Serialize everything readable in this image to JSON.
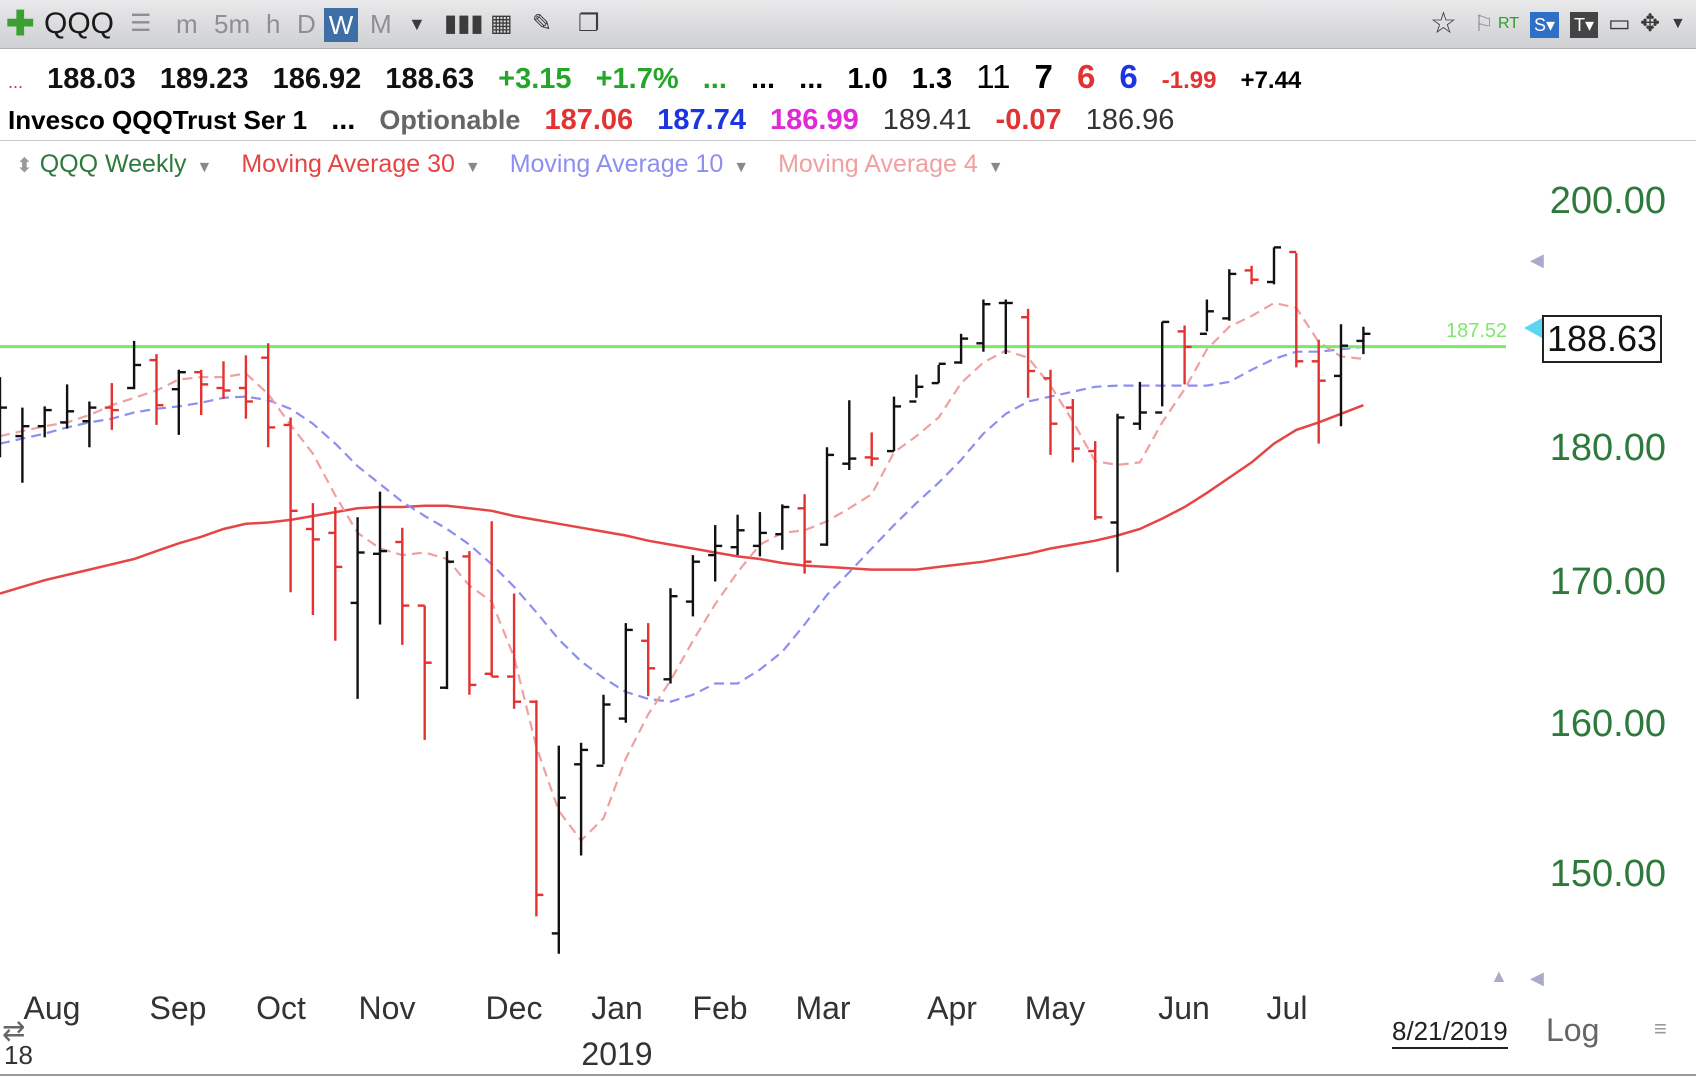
{
  "toolbar": {
    "add_icon": "plus-icon",
    "symbol": "QQQ",
    "timeframes": [
      "m",
      "5m",
      "h",
      "D",
      "W",
      "M"
    ],
    "active_timeframe": "W"
  },
  "quote_row1": {
    "dots": "...",
    "open": "188.03",
    "high": "189.23",
    "low": "186.92",
    "close": "188.63",
    "change": "+3.15",
    "change_pct": "+1.7%",
    "d1": "...",
    "d2": "...",
    "d3": "...",
    "v1": "1.0",
    "v2": "1.3",
    "n1": "11",
    "n2": "7",
    "n3": "6",
    "n4": "6",
    "n5": "-1.99",
    "n6": "+7.44"
  },
  "quote_row2": {
    "name": "Invesco QQQTrust Ser 1",
    "dots": "...",
    "optionable": "Optionable",
    "p1": "187.06",
    "p2": "187.74",
    "p3": "186.99",
    "p4": "189.41",
    "p5": "-0.07",
    "p6": "186.96"
  },
  "legend": {
    "series": "QQQ Weekly",
    "ma30": "Moving Average 30",
    "ma10": "Moving Average 10",
    "ma4": "Moving Average 4"
  },
  "colors": {
    "up_bar": "#111111",
    "down_bar": "#e23232",
    "ma30": "#e64545",
    "ma10": "#8d8ff0",
    "ma4": "#f0a0a0",
    "line": "#7ee86a",
    "axis_text": "#2e7a3c"
  },
  "axis": {
    "y_ticks": [
      "200.00",
      "180.00",
      "170.00",
      "160.00",
      "150.00"
    ],
    "x_ticks": [
      "Aug",
      "Sep",
      "Oct",
      "Nov",
      "Dec",
      "Jan",
      "Feb",
      "Mar",
      "Apr",
      "May",
      "Jun",
      "Jul"
    ],
    "year_label": "2019",
    "prev_year_label": "18",
    "last_price": "188.63",
    "line_label": "187.52",
    "date": "8/21/2019",
    "log_label": "Log"
  },
  "chart_data": {
    "type": "bar",
    "ohlc_bars": [
      {
        "o": 181.0,
        "h": 185.0,
        "l": 178.5,
        "c": 182.5
      },
      {
        "o": 180.2,
        "h": 182.5,
        "l": 176.5,
        "c": 181.0
      },
      {
        "o": 181.0,
        "h": 182.6,
        "l": 180.1,
        "c": 182.3
      },
      {
        "o": 181.3,
        "h": 184.4,
        "l": 180.8,
        "c": 182.2
      },
      {
        "o": 181.4,
        "h": 183.0,
        "l": 179.3,
        "c": 182.5
      },
      {
        "o": 182.5,
        "h": 184.5,
        "l": 180.7,
        "c": 182.3
      },
      {
        "o": 184.1,
        "h": 188.0,
        "l": 184.0,
        "c": 186.0
      },
      {
        "o": 186.4,
        "h": 186.9,
        "l": 181.1,
        "c": 182.7
      },
      {
        "o": 184.0,
        "h": 185.6,
        "l": 180.3,
        "c": 185.4
      },
      {
        "o": 185.4,
        "h": 185.6,
        "l": 181.9,
        "c": 184.4
      },
      {
        "o": 184.1,
        "h": 186.3,
        "l": 183.2,
        "c": 183.9
      },
      {
        "o": 184.1,
        "h": 186.8,
        "l": 181.6,
        "c": 183.0
      },
      {
        "o": 186.6,
        "h": 187.8,
        "l": 179.3,
        "c": 180.9
      },
      {
        "o": 181.1,
        "h": 181.7,
        "l": 168.1,
        "c": 174.3
      },
      {
        "o": 172.9,
        "h": 174.9,
        "l": 166.4,
        "c": 172.1
      },
      {
        "o": 172.6,
        "h": 174.6,
        "l": 164.5,
        "c": 170.0
      },
      {
        "o": 167.3,
        "h": 173.8,
        "l": 160.3,
        "c": 171.1
      },
      {
        "o": 171.0,
        "h": 175.8,
        "l": 165.7,
        "c": 171.2
      },
      {
        "o": 171.9,
        "h": 173.0,
        "l": 164.2,
        "c": 167.1
      },
      {
        "o": 167.1,
        "h": 167.1,
        "l": 157.4,
        "c": 162.9
      },
      {
        "o": 161.1,
        "h": 171.2,
        "l": 161.0,
        "c": 170.4
      },
      {
        "o": 170.8,
        "h": 171.2,
        "l": 160.6,
        "c": 161.3
      },
      {
        "o": 162.1,
        "h": 173.5,
        "l": 161.9,
        "c": 161.9
      },
      {
        "o": 161.9,
        "h": 168.0,
        "l": 159.6,
        "c": 160.1
      },
      {
        "o": 160.1,
        "h": 160.2,
        "l": 145.5,
        "c": 146.9
      },
      {
        "o": 144.4,
        "h": 157.0,
        "l": 143.1,
        "c": 153.4
      },
      {
        "o": 155.7,
        "h": 157.2,
        "l": 149.5,
        "c": 156.7
      },
      {
        "o": 155.6,
        "h": 160.6,
        "l": 155.7,
        "c": 159.9
      },
      {
        "o": 158.9,
        "h": 165.8,
        "l": 158.6,
        "c": 165.3
      },
      {
        "o": 164.5,
        "h": 165.8,
        "l": 160.5,
        "c": 162.5
      },
      {
        "o": 161.7,
        "h": 168.4,
        "l": 161.4,
        "c": 167.8
      },
      {
        "o": 167.4,
        "h": 170.9,
        "l": 166.3,
        "c": 170.4
      },
      {
        "o": 170.9,
        "h": 173.2,
        "l": 168.9,
        "c": 171.6
      },
      {
        "o": 171.5,
        "h": 174.0,
        "l": 170.9,
        "c": 172.8
      },
      {
        "o": 171.6,
        "h": 174.2,
        "l": 170.8,
        "c": 172.6
      },
      {
        "o": 172.5,
        "h": 174.8,
        "l": 171.3,
        "c": 174.6
      },
      {
        "o": 174.5,
        "h": 175.6,
        "l": 169.5,
        "c": 170.4
      },
      {
        "o": 171.7,
        "h": 179.3,
        "l": 171.6,
        "c": 178.7
      },
      {
        "o": 178.0,
        "h": 183.1,
        "l": 177.5,
        "c": 178.4
      },
      {
        "o": 178.5,
        "h": 180.5,
        "l": 177.8,
        "c": 178.4
      },
      {
        "o": 179.0,
        "h": 183.4,
        "l": 179.0,
        "c": 182.6
      },
      {
        "o": 183.0,
        "h": 185.2,
        "l": 183.3,
        "c": 184.2
      },
      {
        "o": 184.5,
        "h": 186.0,
        "l": 184.5,
        "c": 186.1
      },
      {
        "o": 186.2,
        "h": 188.6,
        "l": 186.1,
        "c": 188.2
      },
      {
        "o": 187.8,
        "h": 191.5,
        "l": 187.1,
        "c": 191.1
      },
      {
        "o": 191.2,
        "h": 191.5,
        "l": 186.9,
        "c": 191.2
      },
      {
        "o": 190.0,
        "h": 190.7,
        "l": 183.3,
        "c": 185.5
      },
      {
        "o": 184.9,
        "h": 185.6,
        "l": 178.7,
        "c": 181.2
      },
      {
        "o": 182.5,
        "h": 183.2,
        "l": 178.1,
        "c": 179.2
      },
      {
        "o": 179.0,
        "h": 179.8,
        "l": 173.6,
        "c": 173.8
      },
      {
        "o": 173.4,
        "h": 182.0,
        "l": 169.6,
        "c": 181.7
      },
      {
        "o": 181.2,
        "h": 184.6,
        "l": 180.7,
        "c": 182.1
      },
      {
        "o": 182.1,
        "h": 189.6,
        "l": 182.6,
        "c": 189.6
      },
      {
        "o": 188.8,
        "h": 189.3,
        "l": 184.4,
        "c": 187.5
      },
      {
        "o": 188.6,
        "h": 191.5,
        "l": 188.8,
        "c": 190.5
      },
      {
        "o": 189.9,
        "h": 194.1,
        "l": 189.7,
        "c": 193.7
      },
      {
        "o": 194.0,
        "h": 194.4,
        "l": 192.8,
        "c": 193.2
      },
      {
        "o": 193.0,
        "h": 196.0,
        "l": 192.8,
        "c": 196.0
      },
      {
        "o": 195.6,
        "h": 195.5,
        "l": 185.8,
        "c": 186.3
      },
      {
        "o": 186.3,
        "h": 188.1,
        "l": 179.6,
        "c": 184.7
      },
      {
        "o": 185.1,
        "h": 189.4,
        "l": 181.0,
        "c": 187.6
      },
      {
        "o": 188.0,
        "h": 189.2,
        "l": 186.9,
        "c": 188.6
      }
    ],
    "ma4": [
      180.2,
      180.6,
      181.0,
      181.3,
      181.9,
      182.7,
      183.3,
      183.9,
      184.8,
      185.0,
      185.0,
      185.3,
      183.6,
      181.1,
      178.8,
      175.5,
      172.6,
      171.4,
      170.9,
      171.1,
      170.6,
      168.6,
      167.4,
      163.3,
      156.9,
      152.5,
      150.5,
      152.0,
      156.1,
      159.2,
      161.6,
      164.5,
      167.2,
      169.6,
      171.7,
      172.6,
      172.8,
      173.5,
      174.5,
      175.6,
      178.9,
      180.2,
      181.7,
      184.5,
      186.2,
      187.2,
      186.6,
      184.3,
      181.4,
      178.2,
      177.9,
      178.1,
      181.3,
      184.0,
      187.3,
      189.2,
      190.1,
      191.2,
      190.8,
      187.9,
      186.7,
      186.5
    ],
    "ma10": [
      179.6,
      180.0,
      180.4,
      180.9,
      181.3,
      181.6,
      182.1,
      182.4,
      182.6,
      182.9,
      183.3,
      183.4,
      183.1,
      182.4,
      181.2,
      179.6,
      177.8,
      176.4,
      175.0,
      173.9,
      172.9,
      171.7,
      170.2,
      168.5,
      166.6,
      164.6,
      163.0,
      161.8,
      160.8,
      160.3,
      160.1,
      160.6,
      161.4,
      161.4,
      162.4,
      163.7,
      165.7,
      167.9,
      169.6,
      171.4,
      173.2,
      174.9,
      176.5,
      178.3,
      180.4,
      182.0,
      183.0,
      183.4,
      183.8,
      184.2,
      184.3,
      184.3,
      184.3,
      184.3,
      184.3,
      184.6,
      185.6,
      186.5,
      187.1,
      187.1,
      187.3,
      187.5
    ],
    "ma30": [
      168.0,
      168.5,
      169.0,
      169.4,
      169.8,
      170.2,
      170.6,
      171.2,
      171.8,
      172.3,
      172.9,
      173.3,
      173.4,
      173.6,
      173.9,
      174.2,
      174.5,
      174.6,
      174.6,
      174.7,
      174.7,
      174.5,
      174.3,
      173.9,
      173.6,
      173.3,
      173.0,
      172.7,
      172.4,
      172.0,
      171.7,
      171.4,
      171.1,
      170.8,
      170.6,
      170.3,
      170.1,
      170.0,
      169.9,
      169.8,
      169.8,
      169.8,
      170.0,
      170.2,
      170.4,
      170.7,
      171.0,
      171.4,
      171.7,
      172.0,
      172.4,
      172.9,
      173.7,
      174.6,
      175.7,
      176.9,
      178.1,
      179.6,
      180.7,
      181.3,
      182.0,
      182.7
    ],
    "horizontal_line": 187.52,
    "last_price": 188.63,
    "ylim": [
      143,
      203
    ],
    "y_ticks": [
      200,
      180,
      170,
      160,
      150
    ],
    "log_scale": true,
    "grid": false,
    "legend_placement": "top-left"
  }
}
